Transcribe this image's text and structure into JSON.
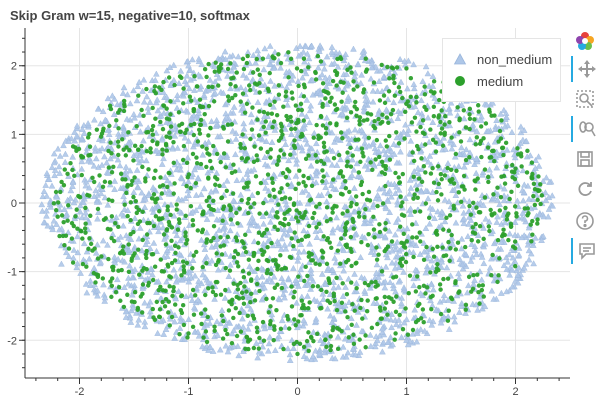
{
  "chart_data": {
    "type": "scatter",
    "title": "Skip Gram w=15, negative=10, softmax",
    "xlabel": "",
    "ylabel": "",
    "xlim": [
      -2.5,
      2.5
    ],
    "ylim": [
      -2.55,
      2.55
    ],
    "x_ticks": [
      "-2",
      "-1",
      "0",
      "1",
      "2"
    ],
    "y_ticks": [
      "-2",
      "-1",
      "0",
      "1",
      "2"
    ],
    "grid": true,
    "legend_position": "top-right",
    "series": [
      {
        "name": "non_medium",
        "marker": "triangle",
        "color": "#aec7e8",
        "count": 2600,
        "distribution": "filled ellipse centered at (0, 0) with x-radius about 2.35 and y-radius about 2.3",
        "points": [
          [
            -2.3,
            0.1
          ],
          [
            -2.1,
            0.9
          ],
          [
            -1.9,
            -1.2
          ],
          [
            -1.6,
            1.6
          ],
          [
            -1.4,
            -1.8
          ],
          [
            -1.0,
            2.0
          ],
          [
            -0.8,
            -2.1
          ],
          [
            -0.3,
            2.25
          ],
          [
            0.2,
            -2.2
          ],
          [
            0.6,
            2.2
          ],
          [
            1.0,
            -2.0
          ],
          [
            1.4,
            1.8
          ],
          [
            1.8,
            -1.4
          ],
          [
            2.1,
            0.9
          ],
          [
            2.3,
            -0.2
          ],
          [
            0.0,
            0.0
          ],
          [
            0.5,
            0.4
          ],
          [
            -0.6,
            -0.3
          ],
          [
            1.2,
            0.6
          ],
          [
            -1.1,
            0.8
          ]
        ]
      },
      {
        "name": "medium",
        "marker": "circle",
        "color": "#2ca02c",
        "count": 1500,
        "distribution": "filled ellipse centered at (0, 0) with x-radius about 2.25 and y-radius about 2.2",
        "points": [
          [
            -2.2,
            -0.2
          ],
          [
            -1.9,
            0.7
          ],
          [
            -1.7,
            -1.1
          ],
          [
            -1.3,
            1.6
          ],
          [
            -1.0,
            -1.9
          ],
          [
            -0.5,
            2.1
          ],
          [
            0.0,
            -2.2
          ],
          [
            0.4,
            2.1
          ],
          [
            0.9,
            -1.9
          ],
          [
            1.3,
            1.5
          ],
          [
            1.7,
            -1.2
          ],
          [
            2.0,
            0.5
          ],
          [
            2.2,
            -0.3
          ],
          [
            0.3,
            0.1
          ],
          [
            -0.4,
            0.6
          ],
          [
            0.8,
            -0.7
          ],
          [
            -1.2,
            -0.4
          ]
        ]
      }
    ]
  },
  "toolbar": {
    "tools": [
      {
        "icon": "bokeh-logo-icon"
      },
      {
        "icon": "pan-icon"
      },
      {
        "icon": "box-zoom-icon"
      },
      {
        "icon": "wheel-zoom-icon"
      },
      {
        "icon": "save-icon"
      },
      {
        "icon": "reset-icon"
      },
      {
        "icon": "help-icon"
      },
      {
        "icon": "hover-icon"
      }
    ]
  }
}
